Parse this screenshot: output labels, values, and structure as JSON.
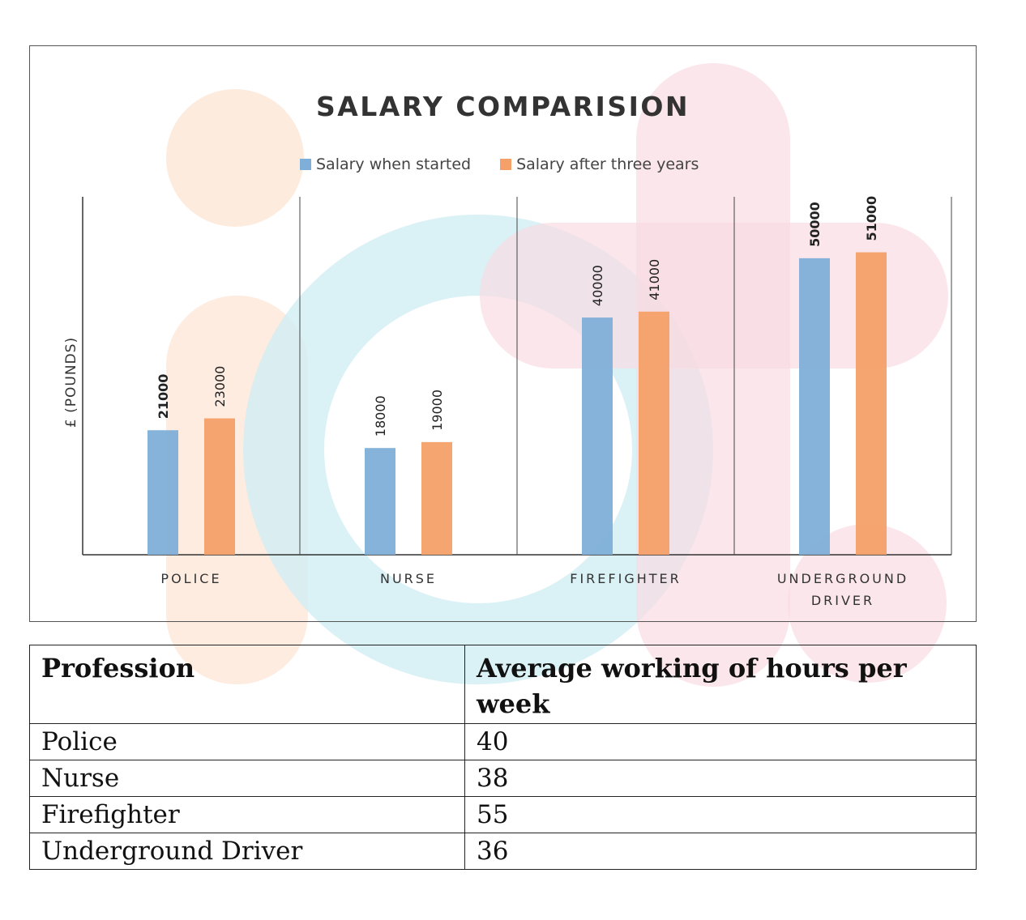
{
  "chart_data": {
    "type": "bar",
    "title": "SALARY COMPARISION",
    "ylabel": "£ (POUNDS)",
    "xlabel": "",
    "categories": [
      "POLICE",
      "NURSE",
      "FIREFIGHTER",
      "UNDERGROUND DRIVER"
    ],
    "category_lines": [
      [
        "POLICE"
      ],
      [
        "NURSE"
      ],
      [
        "FIREFIGHTER"
      ],
      [
        "UNDERGROUND",
        "DRIVER"
      ]
    ],
    "series": [
      {
        "name": "Salary when started",
        "values": [
          21000,
          18000,
          40000,
          50000
        ],
        "color": "#7FAFD8"
      },
      {
        "name": "Salary after three years",
        "values": [
          23000,
          19000,
          41000,
          51000
        ],
        "color": "#F4A068"
      }
    ],
    "ylim": [
      0,
      62000
    ],
    "legend": "top"
  },
  "table": {
    "headers": [
      "Profession",
      "Average working of hours per week"
    ],
    "rows": [
      [
        "Police",
        "40"
      ],
      [
        "Nurse",
        "38"
      ],
      [
        "Firefighter",
        "55"
      ],
      [
        "Underground Driver",
        "36"
      ]
    ]
  }
}
